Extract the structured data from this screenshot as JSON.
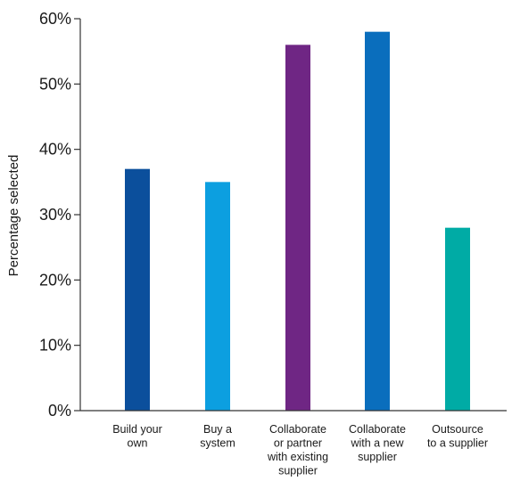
{
  "chart_data": {
    "type": "bar",
    "title": "",
    "xlabel": "",
    "ylabel": "Percentage selected",
    "ylim": [
      0,
      60
    ],
    "yticks": [
      0,
      10,
      20,
      30,
      40,
      50,
      60
    ],
    "ytick_labels": [
      "0%",
      "10%",
      "20%",
      "30%",
      "40%",
      "50%",
      "60%"
    ],
    "grid": false,
    "legend": "none",
    "categories": [
      [
        "Build your",
        "own"
      ],
      [
        "Buy a",
        "system"
      ],
      [
        "Collaborate",
        "or partner",
        "with existing",
        "supplier"
      ],
      [
        "Collaborate",
        "with a new",
        "supplier"
      ],
      [
        "Outsource",
        "to a supplier"
      ]
    ],
    "values": [
      37,
      35,
      56,
      58,
      28
    ],
    "colors": [
      "#0b4f9c",
      "#0c9fe0",
      "#6f2684",
      "#0a6ebd",
      "#00aba5"
    ]
  }
}
